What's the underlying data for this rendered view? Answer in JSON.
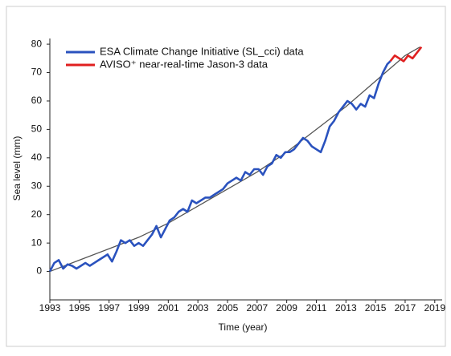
{
  "chart_data": {
    "type": "line",
    "x_label": "Time (year)",
    "y_label": "Sea level (mm)",
    "xlim": [
      1993,
      2019.5
    ],
    "xticks": [
      1993,
      1995,
      1997,
      1999,
      2001,
      2003,
      2005,
      2007,
      2009,
      2011,
      2013,
      2015,
      2017,
      2019
    ],
    "ylim": [
      -10,
      82
    ],
    "yticks": [
      0,
      10,
      20,
      30,
      40,
      50,
      60,
      70,
      80
    ],
    "legend": "top-left",
    "series": [
      {
        "name": "ESA Climate Change Initiative (SL_cci) data",
        "color": "#2a52be",
        "x": [
          1993.0,
          1993.3,
          1993.6,
          1993.9,
          1994.2,
          1994.5,
          1994.8,
          1995.1,
          1995.4,
          1995.7,
          1996.0,
          1996.3,
          1996.6,
          1996.9,
          1997.2,
          1997.5,
          1997.8,
          1998.1,
          1998.4,
          1998.7,
          1999.0,
          1999.3,
          1999.6,
          1999.9,
          2000.2,
          2000.5,
          2000.8,
          2001.1,
          2001.4,
          2001.7,
          2002.0,
          2002.3,
          2002.6,
          2002.9,
          2003.2,
          2003.5,
          2003.8,
          2004.1,
          2004.4,
          2004.7,
          2005.0,
          2005.3,
          2005.6,
          2005.9,
          2006.2,
          2006.5,
          2006.8,
          2007.1,
          2007.4,
          2007.7,
          2008.0,
          2008.3,
          2008.6,
          2008.9,
          2009.2,
          2009.5,
          2009.8,
          2010.1,
          2010.4,
          2010.7,
          2011.0,
          2011.3,
          2011.6,
          2011.9,
          2012.2,
          2012.5,
          2012.8,
          2013.1,
          2013.4,
          2013.7,
          2014.0,
          2014.3,
          2014.6,
          2014.9,
          2015.2,
          2015.5,
          2015.8,
          2016.0
        ],
        "values": [
          0,
          3,
          4,
          1,
          2.5,
          2,
          1,
          2,
          3,
          2,
          3,
          4,
          5,
          6,
          3.5,
          7,
          11,
          10,
          11,
          9,
          10,
          9,
          11,
          13,
          16,
          12,
          15,
          18,
          19,
          21,
          22,
          21,
          25,
          24,
          25,
          26,
          26,
          27,
          28,
          29,
          31,
          32,
          33,
          32,
          35,
          34,
          36,
          36,
          34,
          37,
          38,
          41,
          40,
          42,
          42,
          43,
          45,
          47,
          46,
          44,
          43,
          42,
          46,
          51,
          53,
          56,
          58,
          60,
          59,
          57,
          59,
          58,
          62,
          61,
          66,
          70,
          73,
          74
        ]
      },
      {
        "name": "AVISO⁺ near-real-time Jason-3 data",
        "color": "#e02020",
        "x": [
          2016.0,
          2016.3,
          2016.6,
          2016.9,
          2017.2,
          2017.5,
          2017.8,
          2018.1
        ],
        "values": [
          74,
          76,
          75,
          74,
          76,
          75,
          77,
          79
        ]
      }
    ],
    "trend": {
      "color": "#555555",
      "x": [
        1993,
        1995,
        1997,
        1999,
        2001,
        2003,
        2005,
        2007,
        2009,
        2011,
        2013,
        2015,
        2017,
        2018
      ],
      "values": [
        0,
        4,
        8,
        12,
        17,
        23,
        29,
        35,
        42,
        50,
        58,
        67,
        76,
        79
      ]
    }
  }
}
